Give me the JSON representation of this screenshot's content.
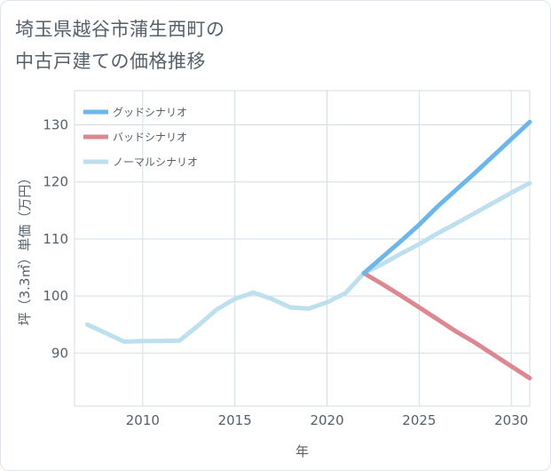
{
  "title_line1": "埼玉県越谷市蒲生西町の",
  "title_line2": "中古戸建ての価格推移",
  "chart_data": {
    "type": "line",
    "xlabel": "年",
    "ylabel": "坪（3.3㎡）単価（万円）",
    "xlim": [
      2006.3,
      2031
    ],
    "ylim": [
      80.7,
      136
    ],
    "xticks": [
      2010,
      2015,
      2020,
      2025,
      2030
    ],
    "yticks": [
      90,
      100,
      110,
      120,
      130
    ],
    "grid": true,
    "legend_position": "top-left",
    "series": [
      {
        "name": "グッドシナリオ",
        "color": "#6bb6ea",
        "x": [
          2022,
          2023,
          2024,
          2025,
          2026,
          2027,
          2028,
          2029,
          2030,
          2031
        ],
        "y": [
          104.0,
          106.8,
          109.6,
          112.5,
          115.7,
          118.6,
          121.5,
          124.5,
          127.5,
          130.5
        ]
      },
      {
        "name": "バッドシナリオ",
        "color": "#dd8890",
        "x": [
          2022,
          2023,
          2024,
          2025,
          2026,
          2027,
          2028,
          2029,
          2030,
          2031
        ],
        "y": [
          104.0,
          102.1,
          100.1,
          98.0,
          95.9,
          93.8,
          91.9,
          89.8,
          87.7,
          85.6
        ]
      },
      {
        "name": "ノーマルシナリオ",
        "color": "#bde0ef",
        "x": [
          2007,
          2008,
          2009,
          2010,
          2011,
          2012,
          2013,
          2014,
          2015,
          2016,
          2017,
          2018,
          2019,
          2020,
          2021,
          2022,
          2023,
          2024,
          2025,
          2026,
          2027,
          2028,
          2029,
          2030,
          2031
        ],
        "y": [
          95.0,
          93.5,
          92.0,
          92.1,
          92.1,
          92.2,
          94.8,
          97.6,
          99.5,
          100.6,
          99.5,
          98.0,
          97.8,
          98.9,
          100.5,
          104.0,
          105.6,
          107.4,
          109.1,
          111.0,
          112.7,
          114.5,
          116.3,
          118.1,
          119.8
        ]
      }
    ]
  }
}
